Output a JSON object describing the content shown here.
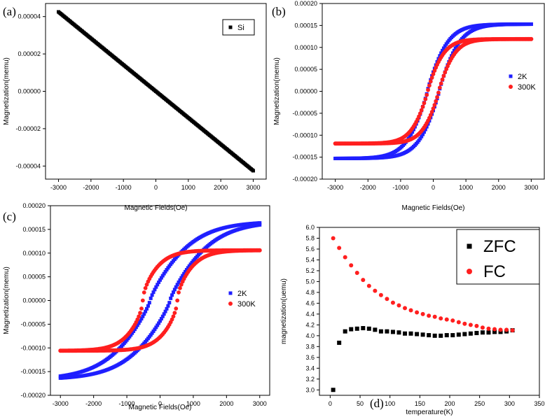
{
  "colors": {
    "black": "#000000",
    "blue": "#1f1fff",
    "red": "#ff1f1f"
  },
  "chart_data": [
    {
      "panel": "(a)",
      "type": "scatter",
      "xlabel": "Magnetic Fields(Oe)",
      "ylabel": "Magnetization(memu)",
      "xlim": [
        -3400,
        3400
      ],
      "ylim": [
        -4.7e-05,
        4.7e-05
      ],
      "xticks": [
        -3000,
        -2000,
        -1000,
        0,
        1000,
        2000,
        3000
      ],
      "xtick_labels": [
        "-3000",
        "-2000",
        "-1000",
        "0",
        "1000",
        "2000",
        "3000"
      ],
      "yticks": [
        -4e-05,
        -2e-05,
        0,
        2e-05,
        4e-05
      ],
      "ytick_labels": [
        "-0.00004",
        "-0.00002",
        "0.00000",
        "0.00002",
        "0.00004"
      ],
      "legend": {
        "position": "top-right",
        "entries": [
          {
            "label": "Si",
            "color": "#000000",
            "marker": "square"
          }
        ]
      },
      "series": [
        {
          "name": "Si",
          "color": "#000000",
          "marker": "square",
          "x": [
            -3000,
            3000
          ],
          "y": [
            4.25e-05,
            -4.25e-05
          ],
          "kind": "linear"
        }
      ]
    },
    {
      "panel": "(b)",
      "type": "scatter",
      "xlabel": "Magnetic Fields(Oe)",
      "ylabel": "Magnetization(memu)",
      "xlim": [
        -3400,
        3400
      ],
      "ylim": [
        -0.0002,
        0.0002
      ],
      "xticks": [
        -3000,
        -2000,
        -1000,
        0,
        1000,
        2000,
        3000
      ],
      "xtick_labels": [
        "-3000",
        "-2000",
        "-1000",
        "0",
        "1000",
        "2000",
        "3000"
      ],
      "yticks": [
        -0.0002,
        -0.00015,
        -0.0001,
        -5e-05,
        0,
        5e-05,
        0.0001,
        0.00015,
        0.0002
      ],
      "ytick_labels": [
        "-0.00020",
        "-0.00015",
        "-0.00010",
        "-0.00005",
        "0.00000",
        "0.00005",
        "0.00010",
        "0.00015",
        "0.00020"
      ],
      "legend": {
        "position": "middle-right",
        "entries": [
          {
            "label": "2K",
            "color": "#1f1fff",
            "marker": "square"
          },
          {
            "label": "300K",
            "color": "#ff1f1f",
            "marker": "circle"
          }
        ]
      },
      "series": [
        {
          "name": "2K",
          "color": "#1f1fff",
          "marker": "square",
          "kind": "hysteresis",
          "ms": 0.000153,
          "hc": 180,
          "w": 700,
          "p": 1.1
        },
        {
          "name": "300K",
          "color": "#ff1f1f",
          "marker": "circle",
          "kind": "hysteresis",
          "ms": 0.000119,
          "hc": 170,
          "w": 560,
          "p": 1.1
        }
      ]
    },
    {
      "panel": "(c)",
      "type": "scatter",
      "xlabel": "Magnetic Fields(Oe)",
      "ylabel": "Magnetization(memu)",
      "xlim": [
        -3300,
        3300
      ],
      "ylim": [
        -0.0002,
        0.0002
      ],
      "xticks": [
        -3000,
        -2000,
        -1000,
        0,
        1000,
        2000,
        3000
      ],
      "xtick_labels": [
        "-3000",
        "-2000",
        "-1000",
        "0",
        "1000",
        "2000",
        "3000"
      ],
      "yticks": [
        -0.0002,
        -0.00015,
        -0.0001,
        -5e-05,
        0,
        5e-05,
        0.0001,
        0.00015,
        0.0002
      ],
      "ytick_labels": [
        "-0.00020",
        "-0.00015",
        "-0.00010",
        "-0.00005",
        "0.00000",
        "0.00005",
        "0.00010",
        "0.00015",
        "0.00020"
      ],
      "legend": {
        "position": "middle-right",
        "entries": [
          {
            "label": "2K",
            "color": "#1f1fff",
            "marker": "square"
          },
          {
            "label": "300K",
            "color": "#ff1f1f",
            "marker": "circle"
          }
        ]
      },
      "series": [
        {
          "name": "2K",
          "color": "#1f1fff",
          "marker": "square",
          "kind": "hysteresis",
          "ms": 0.000167,
          "hc": 300,
          "w": 1500,
          "p": 1.2
        },
        {
          "name": "300K",
          "color": "#ff1f1f",
          "marker": "circle",
          "kind": "hysteresis",
          "ms": 0.000106,
          "hc": 520,
          "w": 750,
          "p": 1.6
        }
      ]
    },
    {
      "panel": "(d)",
      "type": "scatter",
      "xlabel": "temperature(K)",
      "ylabel": "magnetization(uemu)",
      "xlim": [
        -18,
        350
      ],
      "ylim": [
        2.9,
        6.0
      ],
      "xticks": [
        0,
        50,
        100,
        150,
        200,
        250,
        300,
        350
      ],
      "xtick_labels": [
        "0",
        "50",
        "100",
        "150",
        "200",
        "250",
        "300",
        "350"
      ],
      "yticks": [
        3.0,
        3.2,
        3.4,
        3.6,
        3.8,
        4.0,
        4.2,
        4.4,
        4.6,
        4.8,
        5.0,
        5.2,
        5.4,
        5.6,
        5.8,
        6.0
      ],
      "ytick_labels": [
        "3.0",
        "3.2",
        "3.4",
        "3.6",
        "3.8",
        "4.0",
        "4.2",
        "4.4",
        "4.6",
        "4.8",
        "5.0",
        "5.2",
        "5.4",
        "5.6",
        "5.8",
        "6.0"
      ],
      "legend": {
        "position": "top-right",
        "entries": [
          {
            "label": "ZFC",
            "color": "#000000",
            "marker": "square"
          },
          {
            "label": "FC",
            "color": "#ff1f1f",
            "marker": "circle"
          }
        ]
      },
      "series": [
        {
          "name": "ZFC",
          "color": "#000000",
          "marker": "square",
          "x": [
            5,
            15,
            25,
            35,
            45,
            55,
            65,
            75,
            85,
            95,
            105,
            115,
            125,
            135,
            145,
            155,
            165,
            175,
            185,
            195,
            205,
            215,
            225,
            235,
            245,
            255,
            265,
            275,
            285,
            295,
            305
          ],
          "y": [
            3.0,
            3.87,
            4.08,
            4.12,
            4.13,
            4.14,
            4.13,
            4.11,
            4.08,
            4.08,
            4.07,
            4.06,
            4.04,
            4.04,
            4.03,
            4.02,
            4.01,
            4.0,
            4.0,
            4.01,
            4.01,
            4.02,
            4.03,
            4.04,
            4.05,
            4.06,
            4.06,
            4.07,
            4.07,
            4.08,
            4.1
          ]
        },
        {
          "name": "FC",
          "color": "#ff1f1f",
          "marker": "circle",
          "x": [
            5,
            15,
            25,
            35,
            45,
            55,
            65,
            75,
            85,
            95,
            105,
            115,
            125,
            135,
            145,
            155,
            165,
            175,
            185,
            195,
            205,
            215,
            225,
            235,
            245,
            255,
            265,
            275,
            285,
            295,
            305
          ],
          "y": [
            5.8,
            5.62,
            5.45,
            5.3,
            5.16,
            5.03,
            4.92,
            4.83,
            4.75,
            4.68,
            4.61,
            4.56,
            4.51,
            4.47,
            4.43,
            4.4,
            4.37,
            4.35,
            4.32,
            4.3,
            4.28,
            4.25,
            4.22,
            4.2,
            4.18,
            4.15,
            4.13,
            4.12,
            4.11,
            4.11,
            4.1
          ]
        }
      ]
    }
  ]
}
